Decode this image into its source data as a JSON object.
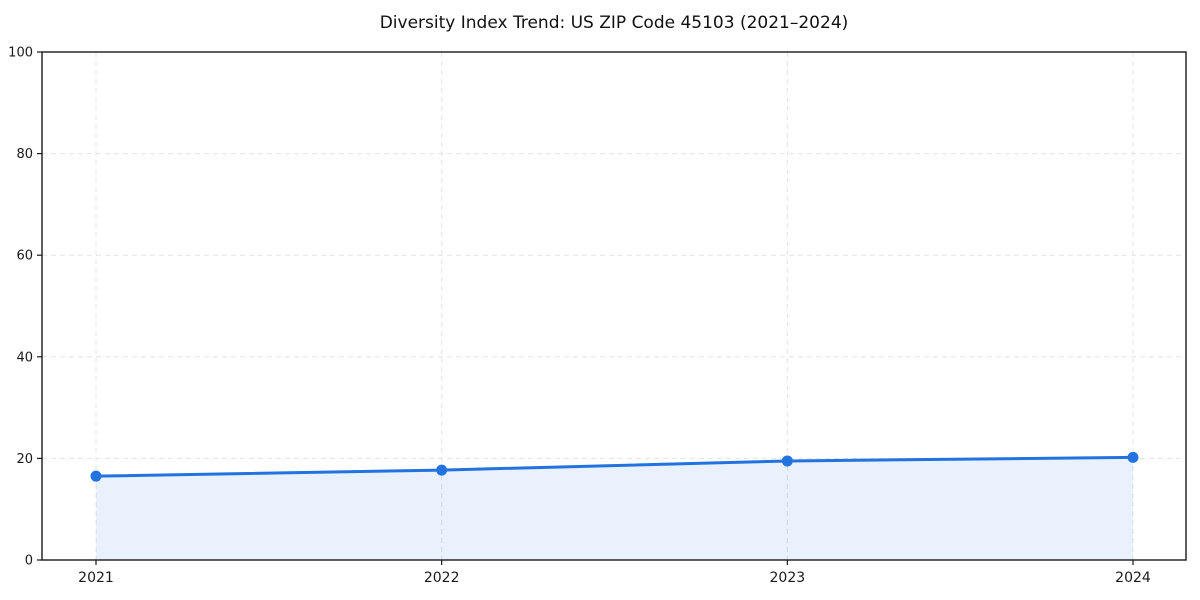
{
  "figure": {
    "background": "#ffffff"
  },
  "chart_data": {
    "type": "line",
    "title": "Diversity Index Trend: US ZIP Code 45103 (2021–2024)",
    "categories": [
      "2021",
      "2022",
      "2023",
      "2024"
    ],
    "values": [
      16.5,
      17.7,
      19.5,
      20.2
    ],
    "series_name": "Diversity Index",
    "xlabel": "",
    "ylabel": "",
    "ylim": [
      0,
      100
    ],
    "yticks": [
      0,
      20,
      40,
      60,
      80,
      100
    ],
    "grid": true,
    "grid_style": "dashed",
    "legend": "none",
    "marker": "circle",
    "area_fill": true,
    "colors": {
      "line": "#2273DF",
      "marker": "#2273DF",
      "area": "rgba(34,115,223,0.10)",
      "grid": "#e4e4e4",
      "spine": "#1a1a1a",
      "tick_label": "#1a1a1a",
      "title": "#111111"
    }
  }
}
